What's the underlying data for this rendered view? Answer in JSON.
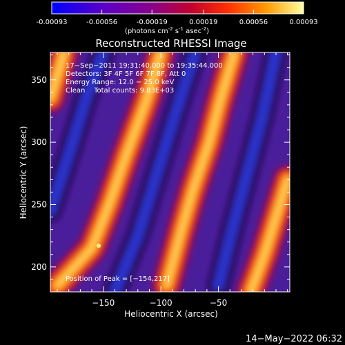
{
  "colorbar": {
    "tick_labels": [
      "-0.00093",
      "-0.00056",
      "-0.00019",
      "0.00019",
      "0.00056",
      "0.00093"
    ],
    "unit_main": "(photons cm",
    "unit_sup1": "-2",
    "unit_mid": " s",
    "unit_sup2": "-1",
    "unit_tail": " asec",
    "unit_sup3": "-2",
    "unit_close": ")",
    "range": [
      -0.00093,
      0.00093
    ],
    "colors": [
      "#0000ff",
      "#5a00c8",
      "#8a008a",
      "#c00030",
      "#ff3000",
      "#ff9a00",
      "#ffff90"
    ]
  },
  "chart_data": {
    "type": "heatmap",
    "title": "Reconstructed RHESSI Image",
    "xlabel": "Heliocentric X (arcsec)",
    "ylabel": "Heliocentric Y (arcsec)",
    "xlim": [
      -196,
      12
    ],
    "ylim": [
      180,
      372
    ],
    "x_ticks": [
      -150,
      -100,
      -50
    ],
    "y_ticks": [
      200,
      250,
      300,
      350
    ],
    "x_tick_labels": [
      "−150",
      "−100",
      "−50"
    ],
    "y_tick_labels": [
      "200",
      "250",
      "300",
      "350"
    ],
    "annotations": [
      "17−Sep−2011 19:31:40.000 to 19:35:44.000",
      "Detectors: 3F 4F 5F 6F 7F 8F, Att 0",
      "Energy Range: 12.0 − 25.0 keV",
      "Clean    Total counts: 9.83E+03"
    ],
    "peak_label": "Position of Peak = [−154,217]",
    "peak_position": [
      -154,
      217
    ],
    "bands": [
      {
        "kind": "bright",
        "points": [
          [
            -190,
            185
          ],
          [
            -160,
            215
          ],
          [
            -145,
            250
          ],
          [
            -130,
            290
          ],
          [
            -112,
            335
          ],
          [
            -100,
            372
          ]
        ]
      },
      {
        "kind": "bright",
        "points": [
          [
            -95,
            185
          ],
          [
            -82,
            230
          ],
          [
            -72,
            262
          ],
          [
            -58,
            300
          ],
          [
            -48,
            335
          ],
          [
            -36,
            372
          ]
        ]
      },
      {
        "kind": "bright",
        "points": [
          [
            -22,
            180
          ],
          [
            -10,
            210
          ],
          [
            0,
            240
          ],
          [
            10,
            270
          ]
        ]
      },
      {
        "kind": "bright",
        "points": [
          [
            -196,
            335
          ],
          [
            -184,
            372
          ]
        ]
      },
      {
        "kind": "dark",
        "points": [
          [
            -196,
            245
          ],
          [
            -180,
            290
          ],
          [
            -165,
            335
          ],
          [
            -150,
            372
          ]
        ]
      },
      {
        "kind": "dark",
        "points": [
          [
            -140,
            180
          ],
          [
            -120,
            225
          ],
          [
            -105,
            270
          ],
          [
            -90,
            315
          ],
          [
            -78,
            350
          ],
          [
            -70,
            372
          ]
        ]
      },
      {
        "kind": "dark",
        "points": [
          [
            -50,
            185
          ],
          [
            -38,
            230
          ],
          [
            -25,
            275
          ],
          [
            -12,
            320
          ],
          [
            0,
            372
          ]
        ]
      }
    ]
  },
  "timestamp": "14−May−2022 06:32"
}
